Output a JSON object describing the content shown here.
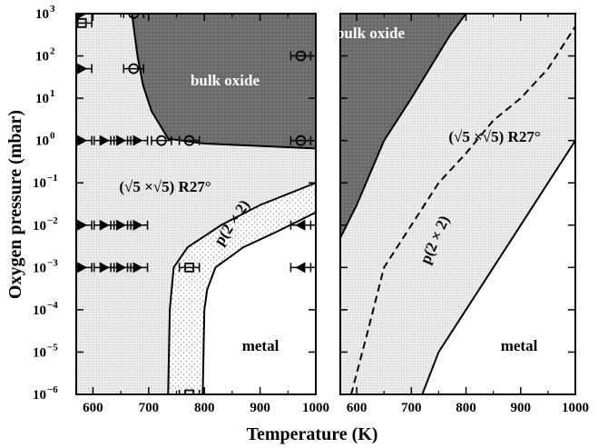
{
  "chart_data": [
    {
      "type": "phase-diagram",
      "panel": "experimental",
      "title": "",
      "xlabel": "Temperature (K)",
      "ylabel": "Oxygen pressure (mbar)",
      "xlim": [
        570,
        1000
      ],
      "ylim_mbar": [
        1e-06,
        1000
      ],
      "yscale": "log",
      "xticks": [
        600,
        700,
        800,
        900,
        1000
      ],
      "region_labels": {
        "bulk_oxide": "bulk oxide",
        "surface_oxide": "(√5 ×√5) R27°",
        "p2x2": "p(2 × 2)",
        "metal": "metal"
      },
      "boundaries": {
        "bulk_oxide": [
          [
            670,
            1000
          ],
          [
            680,
            100
          ],
          [
            690,
            20
          ],
          [
            705,
            5
          ],
          [
            735,
            1.1
          ],
          [
            800,
            0.85
          ],
          [
            1000,
            0.65
          ]
        ],
        "surface_oxide_to_p2x2": [
          [
            735,
            1e-06
          ],
          [
            738,
            0.0001
          ],
          [
            745,
            0.001
          ],
          [
            770,
            0.003
          ],
          [
            830,
            0.01
          ],
          [
            900,
            0.03
          ],
          [
            1000,
            0.1
          ]
        ],
        "p2x2_to_metal": [
          [
            797,
            1e-06
          ],
          [
            800,
            0.0001
          ],
          [
            805,
            0.0003
          ],
          [
            820,
            0.001
          ],
          [
            870,
            0.003
          ],
          [
            930,
            0.007
          ],
          [
            1000,
            0.02
          ]
        ]
      },
      "observations": [
        {
          "marker": "circle",
          "T": 673,
          "p": 1000
        },
        {
          "marker": "circle",
          "T": 673,
          "p": 50
        },
        {
          "marker": "circle",
          "T": 723,
          "p": 1
        },
        {
          "marker": "circle",
          "T": 773,
          "p": 1
        },
        {
          "marker": "circle",
          "T": 973,
          "p": 100
        },
        {
          "marker": "circle",
          "T": 973,
          "p": 1
        },
        {
          "marker": "square",
          "T": 580,
          "p": 600
        },
        {
          "marker": "square",
          "T": 773,
          "p": 0.001
        },
        {
          "marker": "square",
          "T": 773,
          "p": 1e-06
        },
        {
          "marker": "triangle-right",
          "T": 580,
          "p": 1000
        },
        {
          "marker": "triangle-right",
          "T": 580,
          "p": 50
        },
        {
          "marker": "triangle-right",
          "T": 580,
          "p": 1
        },
        {
          "marker": "triangle-right",
          "T": 620,
          "p": 1
        },
        {
          "marker": "triangle-right",
          "T": 650,
          "p": 1
        },
        {
          "marker": "triangle-right",
          "T": 680,
          "p": 1
        },
        {
          "marker": "triangle-right",
          "T": 580,
          "p": 0.01
        },
        {
          "marker": "triangle-right",
          "T": 620,
          "p": 0.01
        },
        {
          "marker": "triangle-right",
          "T": 650,
          "p": 0.01
        },
        {
          "marker": "triangle-right",
          "T": 680,
          "p": 0.01
        },
        {
          "marker": "triangle-right",
          "T": 580,
          "p": 0.001
        },
        {
          "marker": "triangle-right",
          "T": 620,
          "p": 0.001
        },
        {
          "marker": "triangle-right",
          "T": 650,
          "p": 0.001
        },
        {
          "marker": "triangle-right",
          "T": 680,
          "p": 0.001
        },
        {
          "marker": "triangle-left",
          "T": 973,
          "p": 0.01
        },
        {
          "marker": "triangle-left",
          "T": 973,
          "p": 0.001
        }
      ]
    },
    {
      "type": "phase-diagram",
      "panel": "theory",
      "title": "",
      "xlabel": "Temperature (K)",
      "ylabel": "",
      "xlim": [
        570,
        1000
      ],
      "ylim_mbar": [
        1e-06,
        1000
      ],
      "yscale": "log",
      "xticks": [
        600,
        700,
        800,
        900,
        1000
      ],
      "region_labels": {
        "bulk_oxide": "bulk oxide",
        "surface_oxide": "(√5 ×√5) R27°",
        "p2x2": "p(2 × 2)",
        "metal": "metal"
      },
      "boundaries": {
        "bulk_oxide": [
          [
            570,
            0.005
          ],
          [
            600,
            0.03
          ],
          [
            650,
            1
          ],
          [
            700,
            10
          ],
          [
            770,
            300
          ],
          [
            800,
            1000
          ]
        ],
        "p2x2_dashed": [
          [
            590,
            1e-06
          ],
          [
            620,
            3e-05
          ],
          [
            650,
            0.001
          ],
          [
            700,
            0.01
          ],
          [
            750,
            0.1
          ],
          [
            800,
            0.5
          ],
          [
            850,
            3
          ],
          [
            900,
            10
          ],
          [
            950,
            50
          ],
          [
            1000,
            500
          ]
        ],
        "metal": [
          [
            720,
            1e-06
          ],
          [
            750,
            1e-05
          ],
          [
            800,
            0.0001
          ],
          [
            850,
            0.001
          ],
          [
            900,
            0.01
          ],
          [
            950,
            0.1
          ],
          [
            1000,
            1
          ]
        ]
      }
    }
  ],
  "colors": {
    "oxide_fill": "#707070",
    "surface_fill": "#e4e4e4",
    "p2x2_fill": "#fafafa",
    "metal_fill": "#ffffff",
    "line": "#000000"
  }
}
